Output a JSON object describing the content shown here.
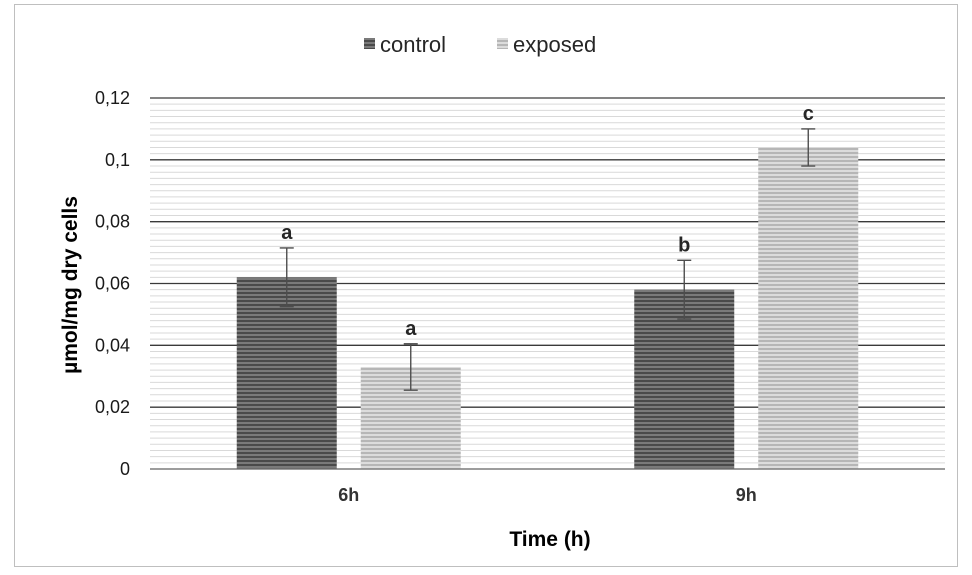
{
  "chart_data": {
    "type": "bar",
    "categories": [
      "6h",
      "9h"
    ],
    "series": [
      {
        "name": "control",
        "values": [
          0.062,
          0.058
        ],
        "errors": [
          0.0095,
          0.0095
        ],
        "labels": [
          "a",
          "b"
        ],
        "color": "#595959"
      },
      {
        "name": "exposed",
        "values": [
          0.033,
          0.104
        ],
        "errors": [
          0.0075,
          0.006
        ],
        "labels": [
          "a",
          "c"
        ],
        "color": "#c8c8c8"
      }
    ],
    "xlabel": "Time (h)",
    "ylabel": "µmol/mg dry cells",
    "ylim": [
      0,
      0.12
    ],
    "yticks": [
      "0",
      "0,02",
      "0,04",
      "0,06",
      "0,08",
      "0,1",
      "0,12"
    ],
    "ytick_values": [
      0,
      0.02,
      0.04,
      0.06,
      0.08,
      0.1,
      0.12
    ],
    "legend_position": "top-center",
    "grid": true
  }
}
